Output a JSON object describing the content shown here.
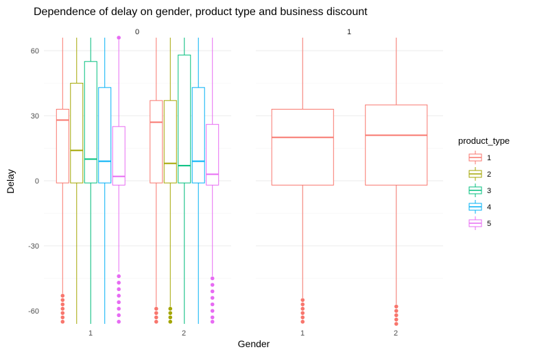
{
  "chart_data": {
    "type": "boxplot",
    "title": "Dependence of delay on gender, product type and business discount",
    "xlabel": "Gender",
    "ylabel": "Delay",
    "ylim": [
      -66,
      66
    ],
    "y_ticks": [
      -60,
      -30,
      0,
      30,
      60
    ],
    "grid": true,
    "legend": {
      "title": "product_type",
      "position": "right",
      "entries": [
        "1",
        "2",
        "3",
        "4",
        "5"
      ]
    },
    "colors": {
      "1": "#F8766D",
      "2": "#A3A500",
      "3": "#00BF7D",
      "4": "#00B0F6",
      "5": "#E76BF3"
    },
    "facets": [
      {
        "label": "0",
        "categories": [
          "1",
          "2"
        ],
        "groups": [
          {
            "gender": "1",
            "product_type": "1",
            "q1": -1,
            "median": 28,
            "q3": 33,
            "whisker_low": -52,
            "whisker_high": 66,
            "outliers": [
              -53,
              -55,
              -57,
              -59,
              -61,
              -63,
              -65
            ]
          },
          {
            "gender": "1",
            "product_type": "2",
            "q1": -1,
            "median": 14,
            "q3": 45,
            "whisker_low": -66,
            "whisker_high": 66,
            "outliers": []
          },
          {
            "gender": "1",
            "product_type": "3",
            "q1": -1,
            "median": 10,
            "q3": 55,
            "whisker_low": -66,
            "whisker_high": 66,
            "outliers": []
          },
          {
            "gender": "1",
            "product_type": "4",
            "q1": -1,
            "median": 9,
            "q3": 43,
            "whisker_low": -66,
            "whisker_high": 66,
            "outliers": []
          },
          {
            "gender": "1",
            "product_type": "5",
            "q1": -2,
            "median": 2,
            "q3": 25,
            "whisker_low": -42,
            "whisker_high": 65,
            "outliers": [
              66,
              -44,
              -47,
              -50,
              -53,
              -56,
              -59,
              -62,
              -65
            ]
          },
          {
            "gender": "2",
            "product_type": "1",
            "q1": -1,
            "median": 27,
            "q3": 37,
            "whisker_low": -58,
            "whisker_high": 66,
            "outliers": [
              -59,
              -61,
              -63,
              -65
            ]
          },
          {
            "gender": "2",
            "product_type": "2",
            "q1": -1,
            "median": 8,
            "q3": 37,
            "whisker_low": -58,
            "whisker_high": 66,
            "outliers": [
              -59,
              -61,
              -63,
              -65
            ]
          },
          {
            "gender": "2",
            "product_type": "3",
            "q1": -1,
            "median": 7,
            "q3": 58,
            "whisker_low": -66,
            "whisker_high": 66,
            "outliers": []
          },
          {
            "gender": "2",
            "product_type": "4",
            "q1": -1,
            "median": 9,
            "q3": 43,
            "whisker_low": -66,
            "whisker_high": 66,
            "outliers": []
          },
          {
            "gender": "2",
            "product_type": "5",
            "q1": -2,
            "median": 3,
            "q3": 26,
            "whisker_low": -44,
            "whisker_high": 66,
            "outliers": [
              -45,
              -48,
              -51,
              -54,
              -57,
              -60,
              -63,
              -65
            ]
          }
        ]
      },
      {
        "label": "1",
        "categories": [
          "1",
          "2"
        ],
        "groups": [
          {
            "gender": "1",
            "product_type": "1",
            "q1": -2,
            "median": 20,
            "q3": 33,
            "whisker_low": -54,
            "whisker_high": 66,
            "outliers": [
              -55,
              -57,
              -59,
              -61,
              -63,
              -65
            ]
          },
          {
            "gender": "2",
            "product_type": "1",
            "q1": -2,
            "median": 21,
            "q3": 35,
            "whisker_low": -57,
            "whisker_high": 66,
            "outliers": [
              -58,
              -60,
              -62,
              -64,
              -66
            ]
          }
        ]
      }
    ]
  }
}
